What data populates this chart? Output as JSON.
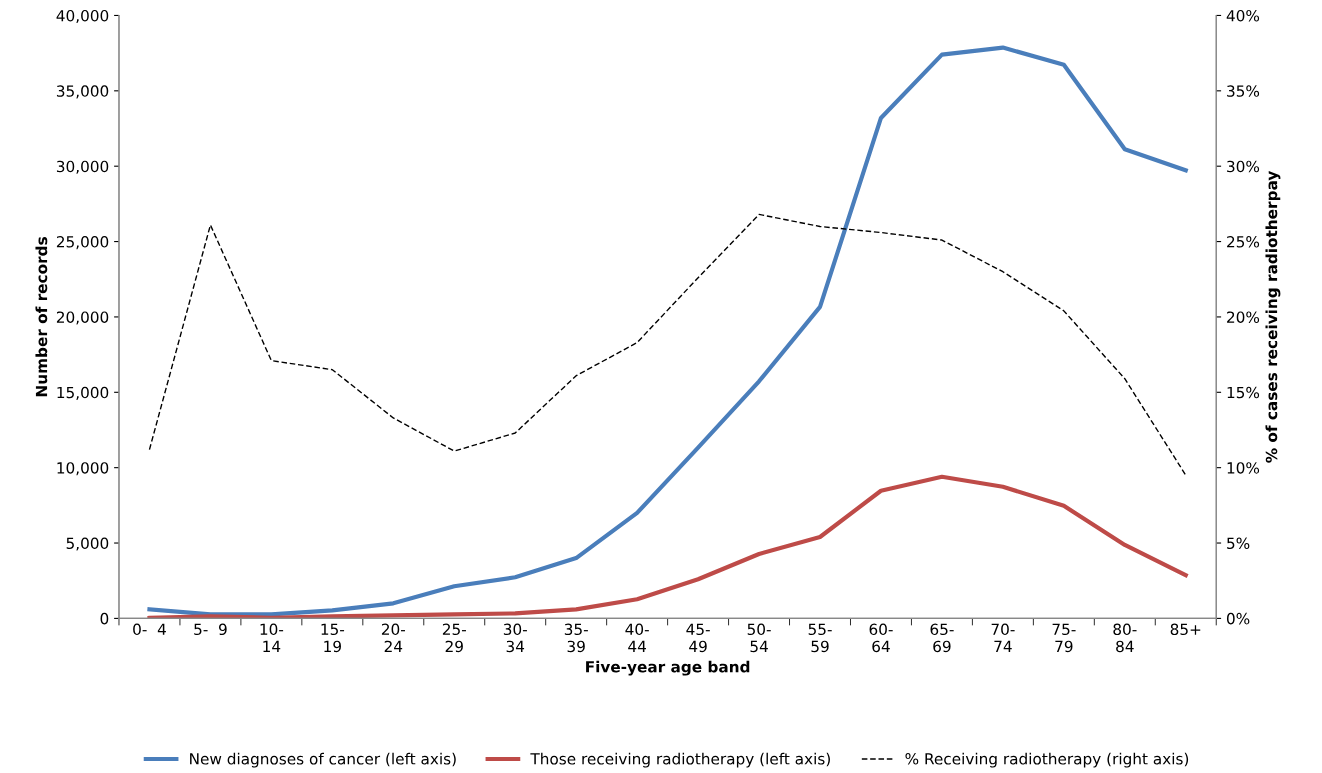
{
  "chart_data": {
    "type": "line",
    "xlabel": "Five-year age band",
    "ylabel": "Number of records",
    "y2label": "% of cases receiving radiotherpay",
    "categories": [
      "0-  4",
      "5-  9",
      "10-\n14",
      "15-\n19",
      "20-\n24",
      "25-\n29",
      "30-\n34",
      "35-\n39",
      "40-\n44",
      "45-\n49",
      "50-\n54",
      "55-\n59",
      "60-\n64",
      "65-\n69",
      "70-\n74",
      "75-\n79",
      "80-\n84",
      "85+"
    ],
    "series": [
      {
        "name": "New diagnoses of cancer (left axis)",
        "color": "#4a7ebb",
        "line_style": "solid",
        "values": [
          600,
          270,
          270,
          530,
          1000,
          2130,
          2730,
          4000,
          7000,
          11330,
          15730,
          20670,
          33200,
          37400,
          37870,
          36730,
          31130,
          29730
        ]
      },
      {
        "name": "Those receiving radiotherapy (left axis)",
        "color": "#be4b48",
        "line_style": "solid",
        "values": [
          30,
          130,
          40,
          130,
          200,
          270,
          330,
          600,
          1270,
          2600,
          4270,
          5400,
          8470,
          9400,
          8730,
          7470,
          4870,
          2870
        ]
      },
      {
        "name": "% Receiving radiotherapy (right axis)",
        "color": "#000000",
        "line_style": "dashed",
        "axis": "y2",
        "values": [
          11.2,
          26.1,
          17.1,
          16.5,
          13.3,
          11.1,
          12.3,
          16.1,
          18.3,
          22.6,
          26.8,
          26.0,
          25.6,
          25.1,
          23.0,
          20.4,
          15.9,
          9.5
        ]
      }
    ],
    "ylim": [
      0,
      40000
    ],
    "yticks": [
      {
        "value": 0,
        "label": "0"
      },
      {
        "value": 5000,
        "label": "5,000"
      },
      {
        "value": 10000,
        "label": "10,000"
      },
      {
        "value": 15000,
        "label": "15,000"
      },
      {
        "value": 20000,
        "label": "20,000"
      },
      {
        "value": 25000,
        "label": "25,000"
      },
      {
        "value": 30000,
        "label": "30,000"
      },
      {
        "value": 35000,
        "label": "35,000"
      },
      {
        "value": 40000,
        "label": "40,000"
      }
    ],
    "y2lim": [
      0,
      40
    ],
    "y2ticks": [
      {
        "value": 0,
        "label": "0%"
      },
      {
        "value": 5,
        "label": "5%"
      },
      {
        "value": 10,
        "label": "10%"
      },
      {
        "value": 15,
        "label": "15%"
      },
      {
        "value": 20,
        "label": "20%"
      },
      {
        "value": 25,
        "label": "25%"
      },
      {
        "value": 30,
        "label": "30%"
      },
      {
        "value": 35,
        "label": "35%"
      },
      {
        "value": 40,
        "label": "40%"
      }
    ],
    "grid": false,
    "legend": "bottom",
    "marker": "none"
  }
}
